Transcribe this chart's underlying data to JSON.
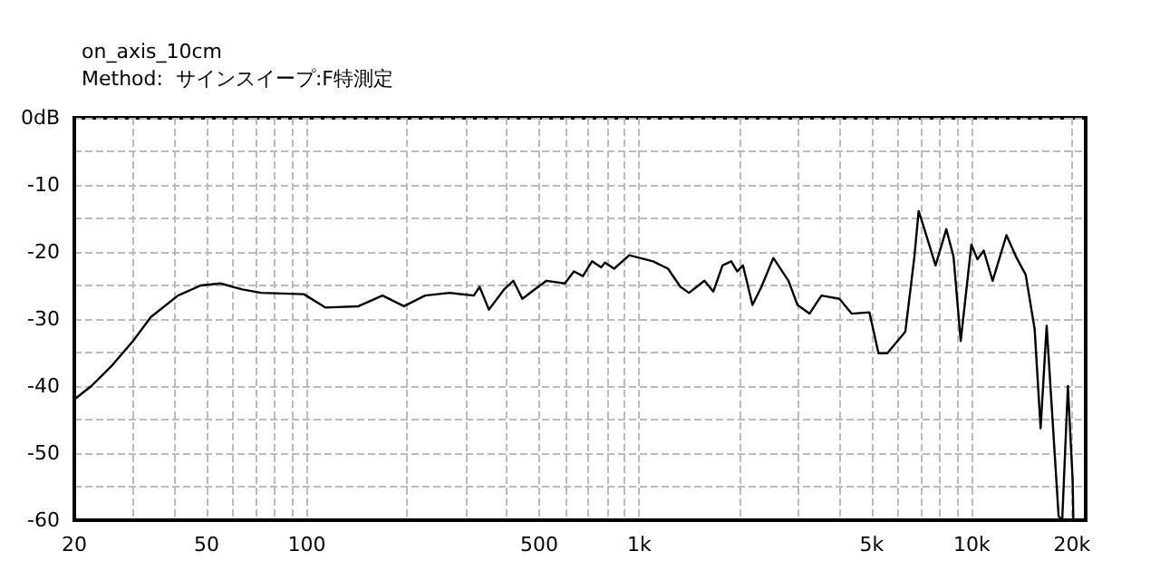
{
  "chart_data": {
    "type": "line",
    "title": "on_axis_10cm",
    "subtitle": "Method:  サインスイープ:F特測定",
    "log": "x",
    "grid": true,
    "marker": "none",
    "line_style": "solid",
    "xlim": [
      20,
      22000
    ],
    "ylim": [
      -60,
      0
    ],
    "xticks": [
      20,
      {
        "value": 30,
        "label": null
      },
      {
        "value": 40,
        "label": null
      },
      50,
      {
        "value": 60,
        "label": null
      },
      {
        "value": 70,
        "label": null
      },
      {
        "value": 80,
        "label": null
      },
      {
        "value": 90,
        "label": null
      },
      100,
      {
        "value": 200,
        "label": null
      },
      {
        "value": 300,
        "label": null
      },
      {
        "value": 400,
        "label": null
      },
      500,
      {
        "value": 600,
        "label": null
      },
      {
        "value": 700,
        "label": null
      },
      {
        "value": 800,
        "label": null
      },
      {
        "value": 900,
        "label": null
      },
      {
        "value": 1000,
        "label": "1k"
      },
      {
        "value": 2000,
        "label": null
      },
      {
        "value": 3000,
        "label": null
      },
      {
        "value": 4000,
        "label": null
      },
      {
        "value": 5000,
        "label": "5k"
      },
      {
        "value": 6000,
        "label": null
      },
      {
        "value": 7000,
        "label": null
      },
      {
        "value": 8000,
        "label": null
      },
      {
        "value": 9000,
        "label": null
      },
      {
        "value": 10000,
        "label": "10k"
      },
      {
        "value": 20000,
        "label": "20k"
      }
    ],
    "yticks": [
      {
        "value": 0,
        "label": "0dB"
      },
      {
        "value": -5,
        "label": null
      },
      -10,
      {
        "value": -15,
        "label": null
      },
      -20,
      {
        "value": -25,
        "label": null
      },
      -30,
      {
        "value": -35,
        "label": null
      },
      -40,
      {
        "value": -45,
        "label": null
      },
      -50,
      {
        "value": -55,
        "label": null
      },
      -60
    ],
    "series": [
      {
        "color": "#000000",
        "x": [
          20,
          22.5,
          26,
          30,
          34,
          41,
          48,
          55,
          64,
          73,
          98,
          114,
          143,
          169,
          196,
          227,
          269,
          318,
          331,
          353,
          392,
          418,
          445,
          484,
          526,
          597,
          636,
          677,
          721,
          768,
          789,
          840,
          933,
          1100,
          1220,
          1330,
          1410,
          1570,
          1670,
          1780,
          1890,
          1970,
          2050,
          2190,
          2330,
          2530,
          2810,
          2990,
          3250,
          3530,
          4000,
          4350,
          4920,
          5240,
          5570,
          6310,
          6720,
          6920,
          7160,
          7780,
          8380,
          8810,
          9260,
          9970,
          10400,
          10860,
          11550,
          12710,
          13640,
          14520,
          15450,
          16100,
          16790,
          18240,
          18700,
          19450,
          20100,
          20200
        ],
        "values": [
          -42,
          -40,
          -36.9,
          -33.3,
          -29.7,
          -26.5,
          -25,
          -24.7,
          -25.6,
          -26.1,
          -26.3,
          -28.3,
          -28.1,
          -26.5,
          -28.1,
          -26.5,
          -26.1,
          -26.5,
          -25.2,
          -28.6,
          -25.6,
          -24.3,
          -27,
          -25.6,
          -24.3,
          -24.7,
          -22.9,
          -23.6,
          -21.4,
          -22.3,
          -21.6,
          -22.5,
          -20.5,
          -21.4,
          -22.5,
          -25.2,
          -26.1,
          -24.3,
          -25.9,
          -22,
          -21.4,
          -22.9,
          -22,
          -27.9,
          -25.2,
          -20.9,
          -24.3,
          -27.9,
          -29.2,
          -26.5,
          -27,
          -29.2,
          -29,
          -35.1,
          -35.1,
          -31.9,
          -20.7,
          -13.9,
          -16.2,
          -22,
          -16.6,
          -20.7,
          -33.3,
          -18.9,
          -21.1,
          -19.8,
          -24.3,
          -17.5,
          -20.9,
          -23.4,
          -31.5,
          -46.3,
          -31,
          -59.4,
          -60,
          -40,
          -54,
          -60
        ]
      }
    ]
  }
}
